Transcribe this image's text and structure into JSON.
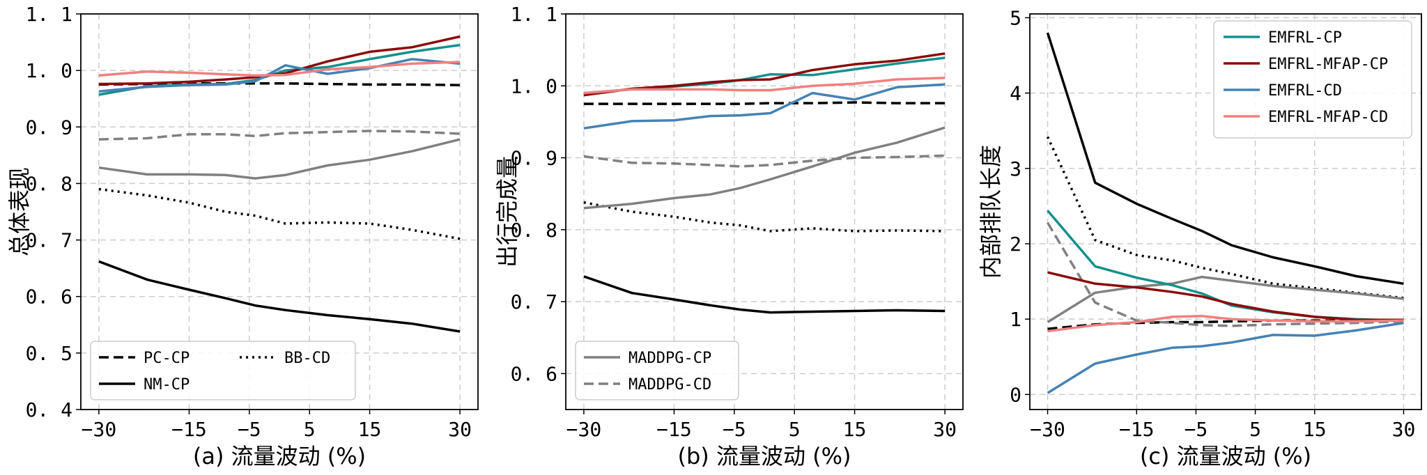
{
  "chart_data": [
    {
      "type": "line",
      "caption": "(a) 流量波动 (%)",
      "ylabel": "总体表现",
      "x": [
        -30,
        -22,
        -15,
        -9,
        -4,
        1,
        8,
        15,
        22,
        30
      ],
      "xticks": [
        -30,
        -15,
        -5,
        5,
        15,
        30
      ],
      "xtick_labels": [
        "−30",
        "−15",
        "−5",
        "5",
        "15",
        "30"
      ],
      "ylim": [
        0.4,
        1.1
      ],
      "yticks": [
        0.4,
        0.5,
        0.6,
        0.7,
        0.8,
        0.9,
        1.0,
        1.1
      ],
      "ytick_labels": [
        "0. 4",
        "0. 5",
        "0. 6",
        "0. 7",
        "0. 8",
        "0. 9",
        "1. 0",
        "1. 1"
      ],
      "grid": true,
      "legend": {
        "location": "lower-left",
        "ncol": 2,
        "entries": [
          "PC-CP",
          "BB-CD",
          "NM-CP"
        ]
      },
      "series": [
        {
          "name": "PC-CP",
          "color": "#000000",
          "dash": "dashed",
          "width": 3.5,
          "values": [
            0.975,
            0.976,
            0.977,
            0.977,
            0.977,
            0.977,
            0.976,
            0.975,
            0.975,
            0.974
          ]
        },
        {
          "name": "NM-CP",
          "color": "#000000",
          "dash": "solid",
          "width": 3.5,
          "values": [
            0.662,
            0.63,
            0.612,
            0.597,
            0.584,
            0.576,
            0.567,
            0.56,
            0.552,
            0.538
          ]
        },
        {
          "name": "BB-CD",
          "color": "#000000",
          "dash": "dotted",
          "width": 3.5,
          "values": [
            0.79,
            0.779,
            0.766,
            0.75,
            0.743,
            0.729,
            0.731,
            0.729,
            0.718,
            0.702
          ]
        },
        {
          "name": "MADDPG-CP",
          "color": "#808080",
          "dash": "solid",
          "width": 3.5,
          "values": [
            0.828,
            0.816,
            0.816,
            0.815,
            0.809,
            0.815,
            0.832,
            0.842,
            0.857,
            0.878
          ]
        },
        {
          "name": "MADDPG-CD",
          "color": "#808080",
          "dash": "dashed",
          "width": 3.5,
          "values": [
            0.878,
            0.88,
            0.887,
            0.887,
            0.884,
            0.889,
            0.891,
            0.893,
            0.892,
            0.888
          ]
        },
        {
          "name": "EMFRL-CP",
          "color": "#14908c",
          "dash": "solid",
          "width": 3.5,
          "values": [
            0.957,
            0.972,
            0.975,
            0.976,
            0.983,
            1.0,
            1.006,
            1.02,
            1.033,
            1.045
          ]
        },
        {
          "name": "EMFRL-MFAP-CP",
          "color": "#8b0a0a",
          "dash": "solid",
          "width": 3.5,
          "values": [
            0.976,
            0.977,
            0.98,
            0.984,
            0.988,
            0.995,
            1.016,
            1.033,
            1.041,
            1.06
          ]
        },
        {
          "name": "EMFRL-CD",
          "color": "#4682b4",
          "dash": "solid",
          "width": 3.5,
          "values": [
            0.963,
            0.971,
            0.974,
            0.975,
            0.981,
            1.009,
            0.994,
            1.004,
            1.02,
            1.012
          ]
        },
        {
          "name": "EMFRL-MFAP-CD",
          "color": "#f08080",
          "dash": "solid",
          "width": 3.5,
          "values": [
            0.991,
            0.998,
            0.996,
            0.993,
            0.991,
            0.992,
            1.002,
            1.006,
            1.012,
            1.015
          ]
        }
      ]
    },
    {
      "type": "line",
      "caption": "(b) 流量波动 (%)",
      "ylabel": "出行完成量",
      "x": [
        -30,
        -22,
        -15,
        -9,
        -4,
        1,
        8,
        15,
        22,
        30
      ],
      "xticks": [
        -30,
        -15,
        -5,
        5,
        15,
        30
      ],
      "xtick_labels": [
        "−30",
        "−15",
        "−5",
        "5",
        "15",
        "30"
      ],
      "ylim": [
        0.55,
        1.1
      ],
      "yticks": [
        0.6,
        0.7,
        0.8,
        0.9,
        1.0,
        1.1
      ],
      "ytick_labels": [
        "0. 6",
        "0. 7",
        "0. 8",
        "0. 9",
        "1. 0",
        "1. 1"
      ],
      "grid": true,
      "legend": {
        "location": "lower-left",
        "ncol": 1,
        "entries": [
          "MADDPG-CP",
          "MADDPG-CD"
        ]
      },
      "series": [
        {
          "name": "PC-CP",
          "color": "#000000",
          "dash": "dashed",
          "width": 3.5,
          "values": [
            0.975,
            0.975,
            0.975,
            0.975,
            0.975,
            0.976,
            0.976,
            0.977,
            0.976,
            0.976
          ]
        },
        {
          "name": "NM-CP",
          "color": "#000000",
          "dash": "solid",
          "width": 3.5,
          "values": [
            0.735,
            0.712,
            0.703,
            0.695,
            0.689,
            0.685,
            0.686,
            0.687,
            0.688,
            0.687
          ]
        },
        {
          "name": "BB-CD",
          "color": "#000000",
          "dash": "dotted",
          "width": 3.5,
          "values": [
            0.838,
            0.825,
            0.818,
            0.81,
            0.806,
            0.798,
            0.802,
            0.798,
            0.799,
            0.798
          ]
        },
        {
          "name": "MADDPG-CP",
          "color": "#808080",
          "dash": "solid",
          "width": 3.5,
          "values": [
            0.83,
            0.836,
            0.844,
            0.849,
            0.858,
            0.87,
            0.888,
            0.907,
            0.921,
            0.942
          ]
        },
        {
          "name": "MADDPG-CD",
          "color": "#808080",
          "dash": "dashed",
          "width": 3.5,
          "values": [
            0.902,
            0.893,
            0.892,
            0.89,
            0.888,
            0.89,
            0.896,
            0.9,
            0.901,
            0.903
          ]
        },
        {
          "name": "EMFRL-CP",
          "color": "#14908c",
          "dash": "solid",
          "width": 3.5,
          "values": [
            0.99,
            0.995,
            0.999,
            1.003,
            1.008,
            1.016,
            1.015,
            1.023,
            1.031,
            1.039
          ]
        },
        {
          "name": "EMFRL-MFAP-CP",
          "color": "#8b0a0a",
          "dash": "solid",
          "width": 3.5,
          "values": [
            0.987,
            0.996,
            1.0,
            1.005,
            1.008,
            1.009,
            1.022,
            1.03,
            1.035,
            1.045
          ]
        },
        {
          "name": "EMFRL-CD",
          "color": "#4682b4",
          "dash": "solid",
          "width": 3.5,
          "values": [
            0.941,
            0.951,
            0.952,
            0.958,
            0.959,
            0.962,
            0.99,
            0.981,
            0.998,
            1.002
          ]
        },
        {
          "name": "EMFRL-MFAP-CD",
          "color": "#f08080",
          "dash": "solid",
          "width": 3.5,
          "values": [
            0.99,
            0.995,
            0.995,
            0.995,
            0.994,
            0.994,
            1.0,
            1.003,
            1.009,
            1.011
          ]
        }
      ]
    },
    {
      "type": "line",
      "caption": "(c) 流量波动 (%)",
      "ylabel": "内部排队长度",
      "x": [
        -30,
        -22,
        -15,
        -9,
        -4,
        1,
        8,
        15,
        22,
        30
      ],
      "xticks": [
        -30,
        -15,
        -5,
        5,
        15,
        30
      ],
      "xtick_labels": [
        "−30",
        "−15",
        "−5",
        "5",
        "15",
        "30"
      ],
      "ylim": [
        -0.2,
        5.05
      ],
      "yticks": [
        0,
        1,
        2,
        3,
        4,
        5
      ],
      "ytick_labels": [
        "0",
        "1",
        "2",
        "3",
        "4",
        "5"
      ],
      "grid": true,
      "legend": {
        "location": "upper-right",
        "ncol": 1,
        "entries": [
          "EMFRL-CP",
          "EMFRL-MFAP-CP",
          "EMFRL-CD",
          "EMFRL-MFAP-CD"
        ]
      },
      "series": [
        {
          "name": "PC-CP",
          "color": "#000000",
          "dash": "dashed",
          "width": 3.5,
          "values": [
            0.87,
            0.93,
            0.95,
            0.96,
            0.96,
            0.97,
            0.98,
            0.98,
            0.98,
            0.99
          ]
        },
        {
          "name": "NM-CP",
          "color": "#000000",
          "dash": "solid",
          "width": 3.5,
          "values": [
            4.8,
            2.81,
            2.53,
            2.33,
            2.17,
            1.98,
            1.82,
            1.7,
            1.57,
            1.47
          ]
        },
        {
          "name": "BB-CD",
          "color": "#000000",
          "dash": "dotted",
          "width": 3.5,
          "values": [
            3.42,
            2.05,
            1.85,
            1.78,
            1.68,
            1.6,
            1.47,
            1.41,
            1.35,
            1.28
          ]
        },
        {
          "name": "MADDPG-CP",
          "color": "#808080",
          "dash": "solid",
          "width": 3.5,
          "values": [
            0.96,
            1.35,
            1.43,
            1.47,
            1.56,
            1.51,
            1.44,
            1.39,
            1.34,
            1.27
          ]
        },
        {
          "name": "MADDPG-CD",
          "color": "#808080",
          "dash": "dashed",
          "width": 3.5,
          "values": [
            2.28,
            1.22,
            0.98,
            0.95,
            0.92,
            0.91,
            0.93,
            0.94,
            0.95,
            0.97
          ]
        },
        {
          "name": "EMFRL-CP",
          "color": "#14908c",
          "dash": "solid",
          "width": 3.5,
          "values": [
            2.44,
            1.7,
            1.55,
            1.45,
            1.34,
            1.18,
            1.09,
            1.03,
            1.0,
            0.98
          ]
        },
        {
          "name": "EMFRL-MFAP-CP",
          "color": "#8b0a0a",
          "dash": "solid",
          "width": 3.5,
          "values": [
            1.62,
            1.47,
            1.42,
            1.36,
            1.3,
            1.2,
            1.1,
            1.03,
            0.99,
            0.99
          ]
        },
        {
          "name": "EMFRL-CD",
          "color": "#4682b4",
          "dash": "solid",
          "width": 3.5,
          "values": [
            0.02,
            0.41,
            0.53,
            0.62,
            0.64,
            0.69,
            0.79,
            0.78,
            0.85,
            0.95
          ]
        },
        {
          "name": "EMFRL-MFAP-CD",
          "color": "#f08080",
          "dash": "solid",
          "width": 3.5,
          "values": [
            0.84,
            0.92,
            0.96,
            1.03,
            1.04,
            1.0,
            0.98,
            0.97,
            0.97,
            0.98
          ]
        }
      ]
    }
  ]
}
